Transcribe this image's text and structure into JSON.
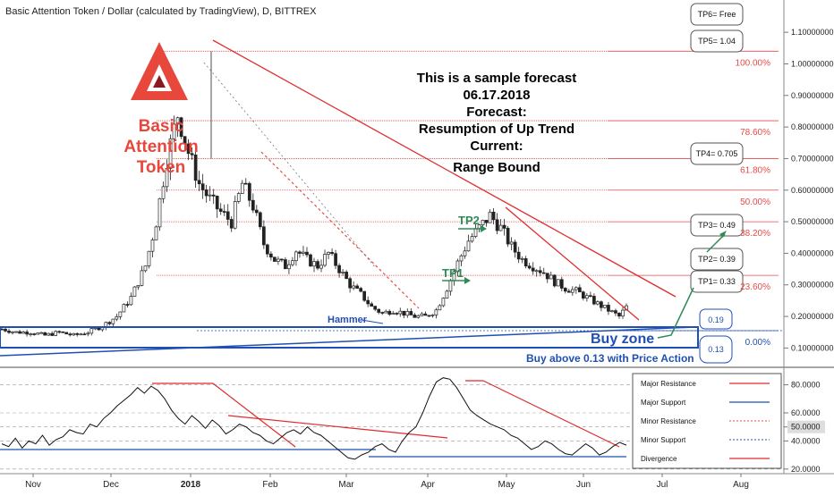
{
  "header": {
    "title": "Basic Attention Token / Dollar (calculated by TradingView), D, BITTREX"
  },
  "logo": {
    "line1": "Basic",
    "line2": "Attention",
    "line3": "Token",
    "color": "#e8473c"
  },
  "forecast": {
    "lines": [
      "This is a sample forecast",
      "06.17.2018",
      "Forecast:",
      "Resumption of Up Trend",
      "Current:",
      "Range Bound"
    ]
  },
  "annotations": {
    "hammer": "Hammer",
    "tp1_label": "TP1",
    "tp2_label": "TP2",
    "buy_zone": "Buy zone",
    "buy_note": "Buy above 0.13 with Price Action",
    "zone_top": "0.19",
    "zone_bottom": "0.13"
  },
  "targets": [
    {
      "label": "TP6= Free"
    },
    {
      "label": "TP5= 1.04"
    },
    {
      "label": "TP4= 0.705"
    },
    {
      "label": "TP3= 0.49"
    },
    {
      "label": "TP2= 0.39"
    },
    {
      "label": "TP1= 0.33"
    }
  ],
  "colors": {
    "candle": "#222222",
    "fib": "#e84a4a",
    "support": "#1f4fb4",
    "accent_green": "#2e8b57",
    "rsi_line": "#111111"
  },
  "chart_data": [
    {
      "type": "candlestick",
      "title": "Basic Attention Token / Dollar (calculated by TradingView), D, BITTREX",
      "x_ticks": [
        "Nov",
        "Dec",
        "2018",
        "Feb",
        "Mar",
        "Apr",
        "May",
        "Jun",
        "Jul",
        "Aug"
      ],
      "y_ticks": [
        "1.10000000",
        "1.00000000",
        "0.90000000",
        "0.80000000",
        "0.70000000",
        "0.60000000",
        "0.50000000",
        "0.40000000",
        "0.30000000",
        "0.20000000",
        "0.10000000"
      ],
      "ylim": [
        0.07,
        1.14
      ],
      "fib_levels": [
        {
          "label": "100.00%",
          "value": 1.04
        },
        {
          "label": "78.60%",
          "value": 0.82
        },
        {
          "label": "61.80%",
          "value": 0.7
        },
        {
          "label": "50.00%",
          "value": 0.6
        },
        {
          "label": "38.20%",
          "value": 0.5
        },
        {
          "label": "23.60%",
          "value": 0.33
        },
        {
          "label": "0.00%",
          "value": 0.155
        }
      ],
      "price_path": [
        [
          0,
          0.16
        ],
        [
          4,
          0.15
        ],
        [
          8,
          0.15
        ],
        [
          12,
          0.14
        ],
        [
          16,
          0.15
        ],
        [
          20,
          0.14
        ],
        [
          24,
          0.15
        ],
        [
          28,
          0.17
        ],
        [
          32,
          0.2
        ],
        [
          36,
          0.26
        ],
        [
          40,
          0.36
        ],
        [
          43,
          0.5
        ],
        [
          46,
          0.7
        ],
        [
          49,
          0.84
        ],
        [
          52,
          0.72
        ],
        [
          55,
          0.62
        ],
        [
          58,
          0.57
        ],
        [
          61,
          0.53
        ],
        [
          64,
          0.5
        ],
        [
          67,
          0.62
        ],
        [
          70,
          0.55
        ],
        [
          73,
          0.43
        ],
        [
          76,
          0.38
        ],
        [
          79,
          0.36
        ],
        [
          82,
          0.41
        ],
        [
          85,
          0.38
        ],
        [
          88,
          0.36
        ],
        [
          91,
          0.4
        ],
        [
          94,
          0.35
        ],
        [
          97,
          0.3
        ],
        [
          100,
          0.27
        ],
        [
          103,
          0.23
        ],
        [
          106,
          0.21
        ],
        [
          109,
          0.22
        ],
        [
          112,
          0.21
        ],
        [
          115,
          0.2
        ],
        [
          118,
          0.2
        ],
        [
          121,
          0.22
        ],
        [
          124,
          0.29
        ],
        [
          127,
          0.37
        ],
        [
          130,
          0.44
        ],
        [
          133,
          0.48
        ],
        [
          136,
          0.52
        ],
        [
          139,
          0.48
        ],
        [
          142,
          0.42
        ],
        [
          145,
          0.38
        ],
        [
          148,
          0.36
        ],
        [
          151,
          0.34
        ],
        [
          154,
          0.31
        ],
        [
          157,
          0.29
        ],
        [
          160,
          0.28
        ],
        [
          163,
          0.26
        ],
        [
          166,
          0.24
        ],
        [
          169,
          0.22
        ],
        [
          172,
          0.2
        ],
        [
          174,
          0.23
        ]
      ]
    },
    {
      "type": "line",
      "title": "",
      "y_ticks": [
        "80.0000",
        "60.0000",
        "50.0000",
        "40.0000",
        "20.0000"
      ],
      "ylim": [
        18,
        88
      ],
      "legend": [
        "Major Resistance",
        "Major Support",
        "Minor Resistance",
        "Minor Support",
        "Divergence"
      ],
      "legend_position": "top-right",
      "series": [
        {
          "values": [
            38,
            36,
            42,
            35,
            40,
            38,
            44,
            37,
            41,
            43,
            48,
            46,
            45,
            52,
            50,
            56,
            60,
            65,
            69,
            73,
            78,
            74,
            79,
            76,
            70,
            62,
            56,
            52,
            58,
            54,
            49,
            55,
            51,
            45,
            48,
            52,
            50,
            46,
            44,
            40,
            38,
            42,
            46,
            48,
            45,
            50,
            46,
            44,
            40,
            36,
            32,
            28,
            27,
            30,
            32,
            36,
            38,
            34,
            32,
            40,
            46,
            50,
            60,
            72,
            82,
            85,
            84,
            78,
            70,
            62,
            58,
            55,
            52,
            50,
            48,
            44,
            42,
            38,
            34,
            36,
            40,
            38,
            34,
            31,
            30,
            34,
            38,
            35,
            30,
            32,
            36,
            39,
            37
          ]
        }
      ]
    }
  ]
}
